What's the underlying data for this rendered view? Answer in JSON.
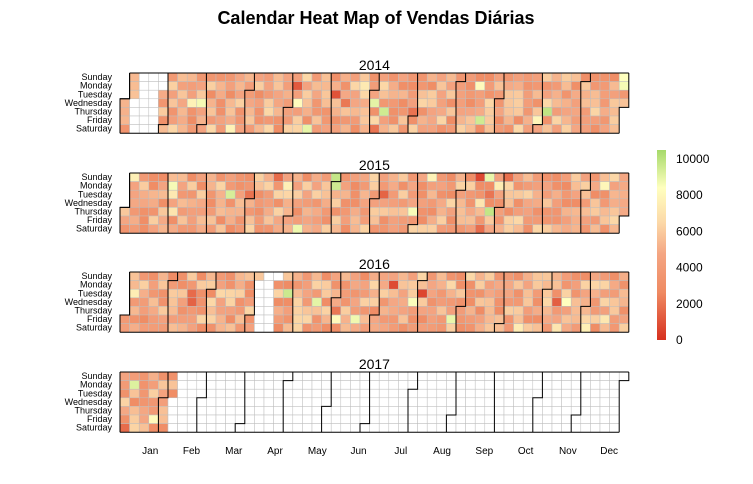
{
  "chart_data": {
    "type": "heatmap",
    "title": "Calendar Heat Map of Vendas Diárias",
    "panels": [
      {
        "year": 2014,
        "start_weekday": 3,
        "days": 365,
        "blank_days": [
          7,
          8,
          9,
          10,
          11,
          12,
          13,
          14,
          15,
          16,
          17,
          18,
          19,
          20,
          21,
          22,
          23,
          24,
          25,
          26
        ]
      },
      {
        "year": 2015,
        "start_weekday": 4,
        "days": 365,
        "blank_days": []
      },
      {
        "year": 2016,
        "start_weekday": 5,
        "days": 366,
        "blank_days": [
          94,
          95,
          96,
          97,
          98,
          99,
          100,
          101,
          102,
          103,
          104,
          105,
          106,
          107
        ]
      },
      {
        "year": 2017,
        "start_weekday": 0,
        "days": 365,
        "blank_days": [
          38,
          39,
          40,
          41,
          42,
          43,
          44,
          45,
          46,
          47,
          48,
          49,
          50,
          51,
          52,
          53,
          54,
          55,
          56,
          57,
          58,
          59,
          60,
          61,
          62,
          63,
          64,
          65,
          66,
          67,
          68,
          69,
          70,
          71,
          72,
          73,
          74,
          75,
          76,
          77,
          78,
          79,
          80,
          81,
          82,
          83,
          84,
          85,
          86,
          87,
          88,
          89,
          90,
          91,
          92,
          93,
          94,
          95,
          96,
          97,
          98,
          99,
          100,
          101,
          102,
          103,
          104,
          105,
          106,
          107,
          108,
          109,
          110,
          111,
          112,
          113,
          114,
          115,
          116,
          117,
          118,
          119,
          120,
          121,
          122,
          123,
          124,
          125,
          126,
          127,
          128,
          129,
          130,
          131,
          132,
          133,
          134,
          135,
          136,
          137,
          138,
          139,
          140,
          141,
          142,
          143,
          144,
          145,
          146,
          147,
          148,
          149,
          150,
          151,
          152,
          153,
          154,
          155,
          156,
          157,
          158,
          159,
          160,
          161,
          162,
          163,
          164,
          165,
          166,
          167,
          168,
          169,
          170,
          171,
          172,
          173,
          174,
          175,
          176,
          177,
          178,
          179,
          180,
          181,
          182,
          183,
          184,
          185,
          186,
          187,
          188,
          189,
          190,
          191,
          192,
          193,
          194,
          195,
          196,
          197,
          198,
          199,
          200,
          201,
          202,
          203,
          204,
          205,
          206,
          207,
          208,
          209,
          210,
          211,
          212,
          213,
          214,
          215,
          216,
          217,
          218,
          219,
          220,
          221,
          222,
          223,
          224,
          225,
          226,
          227,
          228,
          229,
          230,
          231,
          232,
          233,
          234,
          235,
          236,
          237,
          238,
          239,
          240,
          241,
          242,
          243,
          244,
          245,
          246,
          247,
          248,
          249,
          250,
          251,
          252,
          253,
          254,
          255,
          256,
          257,
          258,
          259,
          260,
          261,
          262,
          263,
          264,
          265,
          266,
          267,
          268,
          269,
          270,
          271,
          272,
          273,
          274,
          275,
          276,
          277,
          278,
          279,
          280,
          281,
          282,
          283,
          284,
          285,
          286,
          287,
          288,
          289,
          290,
          291,
          292,
          293,
          294,
          295,
          296,
          297,
          298,
          299,
          300,
          301,
          302,
          303,
          304,
          305,
          306,
          307,
          308,
          309,
          310,
          311,
          312,
          313,
          314,
          315,
          316,
          317,
          318,
          319,
          320,
          321,
          322,
          323,
          324,
          325,
          326,
          327,
          328,
          329,
          330,
          331,
          332,
          333,
          334,
          335,
          336,
          337,
          338,
          339,
          340,
          341,
          342,
          343,
          344,
          345,
          346,
          347,
          348,
          349,
          350,
          351,
          352,
          353,
          354,
          355,
          356,
          357,
          358,
          359,
          360,
          361,
          362,
          363,
          364
        ]
      }
    ],
    "y_categories": [
      "Sunday",
      "Monday",
      "Tuesday",
      "Wednesday",
      "Thursday",
      "Friday",
      "Saturday"
    ],
    "x_categories": [
      "Jan",
      "Feb",
      "Mar",
      "Apr",
      "May",
      "Jun",
      "Jul",
      "Aug",
      "Sep",
      "Oct",
      "Nov",
      "Dec"
    ],
    "colorbar": {
      "ticks": [
        0,
        2000,
        4000,
        6000,
        8000,
        10000
      ],
      "range": [
        0,
        10500
      ]
    },
    "value_distribution": {
      "typical_low": 2800,
      "typical_high": 6500
    },
    "colors": {
      "low": "#d7301f",
      "mid_low": "#f4a582",
      "mid": "#fcd9a8",
      "mid_high": "#ffffbf",
      "high": "#a6d96a",
      "missing": "#ffffff",
      "grid": "#bdbdbd",
      "month_border": "#000000"
    }
  }
}
